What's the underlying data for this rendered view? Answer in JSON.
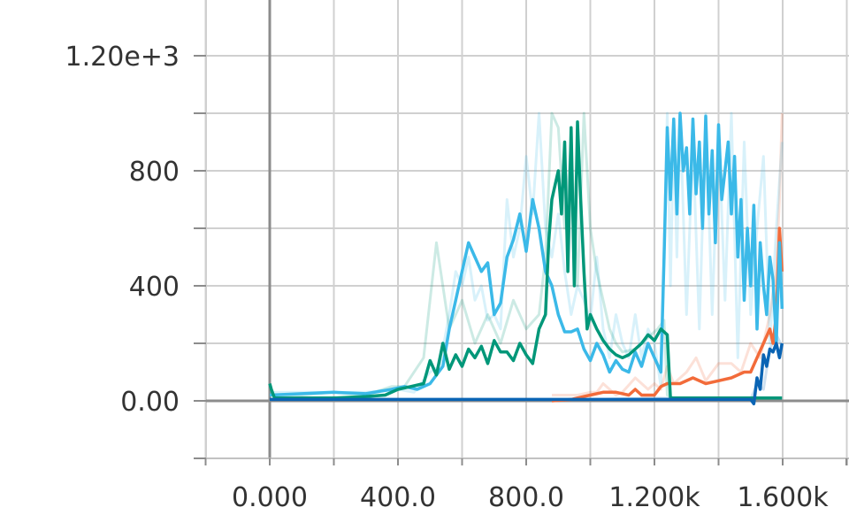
{
  "chart_data": {
    "type": "line",
    "title": "",
    "xlabel": "",
    "ylabel": "",
    "xlim": [
      -400,
      1800
    ],
    "ylim": [
      -200,
      1400
    ],
    "grid": true,
    "x_ticks": [
      {
        "value": 0,
        "label": "0.000"
      },
      {
        "value": 400,
        "label": "400.0"
      },
      {
        "value": 800,
        "label": "800.0"
      },
      {
        "value": 1200,
        "label": "1.200k"
      },
      {
        "value": 1600,
        "label": "1.600k"
      }
    ],
    "y_ticks": [
      {
        "value": 0,
        "label": "0.00"
      },
      {
        "value": 400,
        "label": "400"
      },
      {
        "value": 800,
        "label": "800"
      },
      {
        "value": 1200,
        "label": "1.20e+3"
      }
    ],
    "x_minor_grid": [
      -200,
      200,
      600,
      1000,
      1400,
      1800
    ],
    "y_minor_grid": [
      -200,
      200,
      600,
      1000
    ],
    "series": [
      {
        "color": "#f26b3a",
        "raw": {
          "x": [
            880,
            920,
            960,
            1000,
            1020,
            1040,
            1060,
            1080,
            1100,
            1140,
            1180,
            1200,
            1220,
            1240,
            1260,
            1300,
            1330,
            1360,
            1400,
            1440,
            1470,
            1500,
            1530,
            1560,
            1580,
            1590,
            1598
          ],
          "y": [
            20,
            20,
            20,
            30,
            30,
            60,
            40,
            20,
            30,
            80,
            40,
            60,
            40,
            120,
            60,
            100,
            150,
            70,
            130,
            130,
            100,
            200,
            150,
            300,
            450,
            700,
            1000
          ]
        },
        "smoothed": {
          "x": [
            880,
            940,
            980,
            1000,
            1040,
            1080,
            1120,
            1140,
            1160,
            1200,
            1220,
            1240,
            1280,
            1320,
            1360,
            1400,
            1440,
            1480,
            1500,
            1520,
            1540,
            1560,
            1570,
            1580,
            1590,
            1598
          ],
          "y": [
            0,
            5,
            15,
            20,
            30,
            30,
            20,
            40,
            20,
            20,
            50,
            60,
            60,
            80,
            60,
            70,
            80,
            100,
            100,
            150,
            200,
            250,
            200,
            300,
            600,
            450
          ]
        }
      },
      {
        "color": "#3bb9e8",
        "raw": {
          "x": [
            0,
            100,
            200,
            300,
            400,
            450,
            500,
            530,
            560,
            580,
            600,
            620,
            640,
            660,
            680,
            700,
            720,
            740,
            760,
            780,
            800,
            820,
            840,
            860,
            880,
            900,
            920,
            940,
            960,
            980,
            1000,
            1020,
            1040,
            1060,
            1080,
            1100,
            1120,
            1140,
            1160,
            1180,
            1200,
            1220,
            1240,
            1250,
            1260,
            1270,
            1280,
            1300,
            1320,
            1340,
            1360,
            1380,
            1400,
            1420,
            1440,
            1460,
            1480,
            1500,
            1520,
            1540,
            1560,
            1580,
            1598
          ],
          "y": [
            30,
            30,
            30,
            30,
            40,
            30,
            100,
            120,
            300,
            450,
            400,
            500,
            350,
            400,
            280,
            300,
            250,
            700,
            500,
            600,
            850,
            650,
            1000,
            600,
            500,
            650,
            450,
            300,
            400,
            350,
            280,
            500,
            250,
            150,
            300,
            200,
            150,
            300,
            150,
            250,
            200,
            50,
            1000,
            400,
            950,
            500,
            1000,
            300,
            900,
            250,
            1000,
            300,
            950,
            350,
            1000,
            150,
            900,
            300,
            600,
            850,
            200,
            600,
            900
          ]
        },
        "smoothed": {
          "x": [
            0,
            100,
            200,
            300,
            380,
            420,
            460,
            500,
            540,
            560,
            580,
            600,
            620,
            640,
            660,
            680,
            700,
            720,
            740,
            760,
            780,
            800,
            820,
            840,
            860,
            880,
            900,
            920,
            940,
            960,
            980,
            1000,
            1020,
            1040,
            1060,
            1080,
            1100,
            1120,
            1140,
            1160,
            1180,
            1200,
            1220,
            1230,
            1240,
            1250,
            1260,
            1270,
            1280,
            1290,
            1300,
            1310,
            1320,
            1330,
            1340,
            1350,
            1360,
            1370,
            1380,
            1390,
            1400,
            1410,
            1420,
            1430,
            1440,
            1450,
            1460,
            1470,
            1480,
            1490,
            1500,
            1510,
            1520,
            1530,
            1540,
            1550,
            1560,
            1570,
            1580,
            1590,
            1598
          ],
          "y": [
            20,
            25,
            30,
            25,
            40,
            50,
            40,
            60,
            120,
            250,
            350,
            450,
            550,
            500,
            450,
            480,
            300,
            340,
            500,
            560,
            650,
            520,
            700,
            600,
            450,
            400,
            300,
            240,
            240,
            250,
            180,
            140,
            200,
            160,
            100,
            140,
            110,
            100,
            170,
            120,
            200,
            150,
            100,
            500,
            950,
            700,
            980,
            650,
            1000,
            800,
            880,
            650,
            980,
            720,
            900,
            600,
            990,
            650,
            870,
            550,
            960,
            700,
            800,
            900,
            650,
            850,
            500,
            700,
            350,
            600,
            400,
            680,
            250,
            550,
            400,
            300,
            500,
            420,
            200,
            550,
            320
          ]
        }
      },
      {
        "color": "#009779",
        "raw": {
          "x": [
            0,
            100,
            200,
            300,
            380,
            420,
            480,
            520,
            560,
            600,
            640,
            680,
            720,
            760,
            800,
            840,
            860,
            880,
            900,
            920,
            940,
            960,
            980,
            1000,
            1020,
            1040,
            1060,
            1080,
            1100,
            1140,
            1180,
            1210,
            1230,
            1240,
            1260,
            1300,
            1400,
            1500,
            1598
          ],
          "y": [
            20,
            20,
            30,
            20,
            50,
            50,
            150,
            550,
            250,
            350,
            200,
            300,
            200,
            350,
            250,
            300,
            500,
            1000,
            950,
            600,
            900,
            400,
            1000,
            600,
            450,
            350,
            250,
            200,
            170,
            180,
            220,
            250,
            280,
            20,
            10,
            10,
            10,
            10,
            10
          ]
        },
        "smoothed": {
          "x": [
            0,
            5,
            15,
            100,
            200,
            300,
            360,
            400,
            440,
            480,
            500,
            520,
            540,
            560,
            580,
            600,
            620,
            640,
            660,
            680,
            700,
            720,
            740,
            760,
            780,
            800,
            820,
            840,
            860,
            870,
            880,
            890,
            900,
            910,
            920,
            930,
            940,
            950,
            960,
            970,
            980,
            990,
            1000,
            1020,
            1040,
            1060,
            1080,
            1100,
            1120,
            1140,
            1160,
            1180,
            1200,
            1220,
            1240,
            1250,
            1260,
            1300,
            1400,
            1500,
            1598
          ],
          "y": [
            60,
            40,
            10,
            10,
            10,
            15,
            20,
            40,
            50,
            60,
            140,
            90,
            200,
            110,
            160,
            120,
            180,
            150,
            190,
            130,
            210,
            170,
            170,
            140,
            200,
            160,
            130,
            250,
            300,
            550,
            700,
            750,
            800,
            650,
            900,
            450,
            950,
            400,
            970,
            700,
            450,
            250,
            300,
            250,
            210,
            180,
            160,
            150,
            160,
            180,
            200,
            230,
            210,
            250,
            230,
            10,
            10,
            10,
            10,
            10,
            10
          ]
        }
      },
      {
        "color": "#0a64b4",
        "raw": {
          "x": [
            0,
            200,
            400,
            600,
            800,
            1000,
            1200,
            1400,
            1500,
            1520,
            1540,
            1560,
            1580,
            1598
          ],
          "y": [
            5,
            5,
            5,
            5,
            5,
            5,
            10,
            5,
            5,
            60,
            40,
            180,
            230,
            190
          ]
        },
        "smoothed": {
          "x": [
            0,
            200,
            400,
            600,
            800,
            1000,
            1100,
            1150,
            1200,
            1300,
            1400,
            1480,
            1500,
            1510,
            1520,
            1530,
            1540,
            1550,
            1560,
            1570,
            1580,
            1590,
            1598
          ],
          "y": [
            5,
            5,
            5,
            5,
            5,
            5,
            5,
            5,
            5,
            5,
            5,
            5,
            5,
            -10,
            80,
            40,
            160,
            120,
            180,
            170,
            200,
            150,
            200
          ]
        }
      }
    ]
  }
}
